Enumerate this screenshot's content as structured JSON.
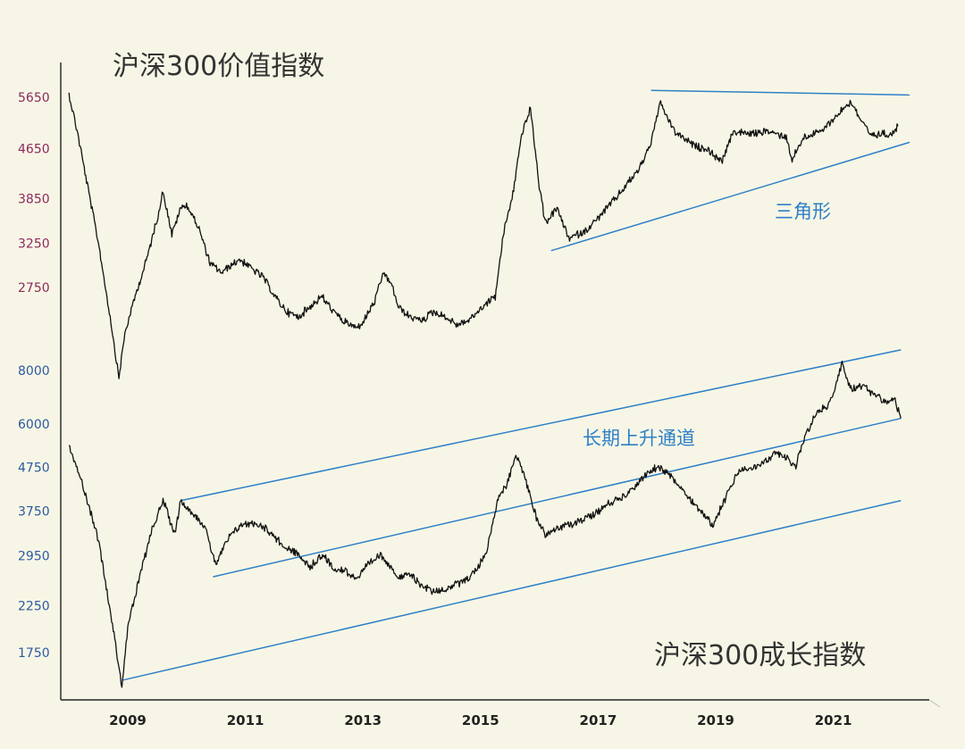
{
  "chart_data": [
    {
      "type": "line",
      "title": "沪深300价值指数",
      "y_tick_labels": [
        "5650",
        "4650",
        "3850",
        "3250",
        "2750"
      ],
      "y_tick_values": [
        5650,
        4650,
        3850,
        3250,
        2750
      ],
      "label_color": "#8c2a5c",
      "line_color": "#111111",
      "annotation": {
        "text": "三角形",
        "color": "#2f80c8",
        "lines": [
          {
            "x": [
              2017.9,
              2022.3
            ],
            "y": [
              5780,
              5680
            ]
          },
          {
            "x": [
              2016.2,
              2022.3
            ],
            "y": [
              3150,
              4750
            ]
          }
        ]
      },
      "series": [
        {
          "x": [
            2008.0,
            2008.15,
            2008.3,
            2008.5,
            2008.7,
            2008.85,
            2008.95,
            2009.1,
            2009.3,
            2009.5,
            2009.6,
            2009.75,
            2009.9,
            2010.0,
            2010.2,
            2010.4,
            2010.6,
            2010.8,
            2010.9,
            2011.1,
            2011.3,
            2011.5,
            2011.7,
            2011.9,
            2012.1,
            2012.3,
            2012.5,
            2012.7,
            2012.9,
            2013.0,
            2013.2,
            2013.35,
            2013.5,
            2013.6,
            2013.8,
            2014.0,
            2014.2,
            2014.4,
            2014.6,
            2014.8,
            2014.95,
            2015.1,
            2015.25,
            2015.4,
            2015.55,
            2015.7,
            2015.85,
            2016.0,
            2016.1,
            2016.3,
            2016.5,
            2016.8,
            2017.1,
            2017.4,
            2017.7,
            2017.9,
            2018.05,
            2018.3,
            2018.6,
            2018.9,
            2019.1,
            2019.3,
            2019.6,
            2019.9,
            2020.2,
            2020.3,
            2020.5,
            2020.8,
            2021.05,
            2021.3,
            2021.5,
            2021.65,
            2021.8,
            2022.0,
            2022.1
          ],
          "y": [
            5700,
            4900,
            4100,
            3250,
            2450,
            1950,
            2300,
            2600,
            3000,
            3550,
            3950,
            3350,
            3700,
            3750,
            3450,
            3000,
            2900,
            3000,
            3050,
            2950,
            2850,
            2650,
            2500,
            2450,
            2550,
            2650,
            2500,
            2400,
            2350,
            2400,
            2600,
            2900,
            2750,
            2550,
            2450,
            2420,
            2500,
            2450,
            2380,
            2420,
            2500,
            2580,
            2650,
            3400,
            3900,
            4900,
            5400,
            4000,
            3500,
            3700,
            3300,
            3400,
            3650,
            3950,
            4300,
            4750,
            5500,
            4950,
            4700,
            4600,
            4400,
            4950,
            4900,
            4950,
            4850,
            4450,
            4850,
            4950,
            5250,
            5550,
            5100,
            4850,
            4900,
            4900,
            5050
          ]
        }
      ]
    },
    {
      "type": "line",
      "title": "沪深300成长指数",
      "y_tick_labels": [
        "8000",
        "6000",
        "4750",
        "3750",
        "2950",
        "2250",
        "1750"
      ],
      "y_tick_values": [
        8000,
        6000,
        4750,
        3750,
        2950,
        2250,
        1750
      ],
      "label_color": "#2c5aa0",
      "line_color": "#111111",
      "annotation": {
        "text": "长期上升通道",
        "color": "#2f80c8",
        "lines": [
          {
            "x": [
              2009.9,
              2022.15
            ],
            "y": [
              3950,
              8900
            ]
          },
          {
            "x": [
              2010.45,
              2022.15
            ],
            "y": [
              2620,
              6150
            ]
          },
          {
            "x": [
              2008.9,
              2022.15
            ],
            "y": [
              1500,
              3950
            ]
          }
        ]
      },
      "series": [
        {
          "x": [
            2008.0,
            2008.15,
            2008.3,
            2008.5,
            2008.7,
            2008.9,
            2009.0,
            2009.2,
            2009.4,
            2009.6,
            2009.8,
            2009.9,
            2010.1,
            2010.3,
            2010.5,
            2010.7,
            2010.9,
            2011.1,
            2011.3,
            2011.5,
            2011.7,
            2011.9,
            2012.1,
            2012.3,
            2012.5,
            2012.7,
            2012.9,
            2013.1,
            2013.3,
            2013.5,
            2013.6,
            2013.8,
            2014.0,
            2014.2,
            2014.4,
            2014.6,
            2014.8,
            2014.95,
            2015.1,
            2015.3,
            2015.45,
            2015.6,
            2015.75,
            2015.95,
            2016.1,
            2016.3,
            2016.6,
            2016.9,
            2017.2,
            2017.5,
            2017.8,
            2018.0,
            2018.2,
            2018.4,
            2018.7,
            2018.95,
            2019.2,
            2019.4,
            2019.6,
            2019.8,
            2020.0,
            2020.2,
            2020.35,
            2020.5,
            2020.7,
            2020.9,
            2021.0,
            2021.15,
            2021.3,
            2021.5,
            2021.7,
            2021.9,
            2022.05,
            2022.15
          ],
          "y": [
            5300,
            4700,
            4000,
            3200,
            2200,
            1450,
            2000,
            2600,
            3350,
            3950,
            3300,
            3950,
            3700,
            3450,
            2800,
            3200,
            3450,
            3500,
            3450,
            3250,
            3050,
            2950,
            2750,
            2950,
            2750,
            2700,
            2600,
            2800,
            2950,
            2750,
            2600,
            2650,
            2500,
            2420,
            2450,
            2520,
            2600,
            2750,
            3000,
            4000,
            4300,
            5100,
            4500,
            3600,
            3300,
            3400,
            3500,
            3650,
            3900,
            4100,
            4500,
            4750,
            4550,
            4250,
            3800,
            3450,
            4100,
            4650,
            4700,
            4800,
            5100,
            5000,
            4700,
            5500,
            6300,
            6600,
            7000,
            8300,
            7200,
            7300,
            7000,
            6700,
            6800,
            6150
          ]
        }
      ]
    }
  ],
  "x_axis": {
    "tick_labels": [
      "2009",
      "2011",
      "2013",
      "2015",
      "2017",
      "2019",
      "2021"
    ],
    "tick_values": [
      2009,
      2011,
      2013,
      2015,
      2017,
      2019,
      2021
    ],
    "range": [
      2008.0,
      2022.5
    ]
  },
  "colors": {
    "background": "#f7f6e6",
    "axis": "#222222",
    "channel": "#2f80c8"
  }
}
